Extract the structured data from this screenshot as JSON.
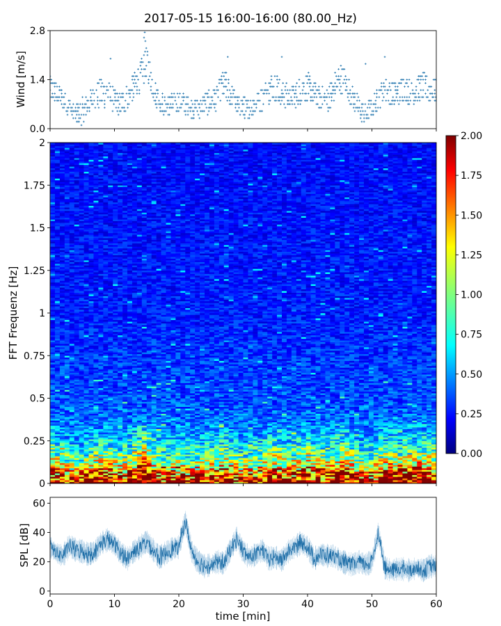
{
  "figure": {
    "title": "2017-05-15 16:00-16:00 (80.00_Hz)"
  },
  "chart_data": [
    {
      "type": "scatter",
      "panel": "wind",
      "ylabel": "Wind [m/s]",
      "xlim": [
        0,
        60
      ],
      "ylim": [
        0,
        2.8
      ],
      "yticks": [
        0.0,
        1.4,
        2.8
      ],
      "ytick_labels": [
        "0.0",
        "1.4",
        "2.8"
      ],
      "marker": "+",
      "color": "#2b7bb1",
      "envelope": {
        "x": [
          0,
          1,
          2,
          3,
          4,
          5,
          6,
          7,
          8,
          9,
          10,
          11,
          12,
          13,
          14,
          15,
          16,
          17,
          18,
          19,
          20,
          21,
          22,
          23,
          24,
          25,
          26,
          27,
          28,
          29,
          30,
          31,
          32,
          33,
          34,
          35,
          36,
          37,
          38,
          39,
          40,
          41,
          42,
          43,
          44,
          45,
          46,
          47,
          48,
          49,
          50,
          51,
          52,
          53,
          54,
          55,
          56,
          57,
          58,
          59,
          60
        ],
        "center": [
          1.2,
          1.0,
          0.8,
          0.6,
          0.4,
          0.5,
          0.7,
          0.9,
          1.0,
          1.0,
          0.8,
          0.7,
          0.9,
          1.2,
          1.5,
          1.9,
          1.2,
          0.8,
          0.6,
          0.7,
          0.8,
          0.7,
          0.6,
          0.6,
          0.7,
          0.8,
          0.9,
          1.3,
          1.0,
          0.7,
          0.6,
          0.6,
          0.7,
          0.8,
          1.1,
          1.3,
          1.0,
          0.9,
          0.9,
          1.1,
          1.2,
          1.0,
          0.9,
          0.8,
          1.1,
          1.5,
          1.3,
          0.9,
          0.6,
          0.4,
          0.6,
          0.9,
          1.1,
          1.0,
          1.0,
          1.2,
          1.0,
          1.1,
          1.2,
          1.1,
          1.1
        ],
        "spread": [
          0.35,
          0.35,
          0.3,
          0.3,
          0.3,
          0.35,
          0.35,
          0.4,
          0.4,
          0.4,
          0.35,
          0.3,
          0.35,
          0.4,
          0.45,
          0.45,
          0.4,
          0.3,
          0.3,
          0.3,
          0.3,
          0.3,
          0.3,
          0.3,
          0.3,
          0.35,
          0.35,
          0.45,
          0.4,
          0.3,
          0.3,
          0.3,
          0.3,
          0.35,
          0.45,
          0.5,
          0.4,
          0.35,
          0.35,
          0.4,
          0.4,
          0.35,
          0.35,
          0.35,
          0.4,
          0.45,
          0.4,
          0.35,
          0.3,
          0.3,
          0.3,
          0.35,
          0.4,
          0.35,
          0.35,
          0.4,
          0.35,
          0.35,
          0.4,
          0.35,
          0.35
        ]
      }
    },
    {
      "type": "heatmap",
      "panel": "spectrogram",
      "ylabel": "FFT Frequenz [Hz]",
      "xlim": [
        0,
        60
      ],
      "ylim": [
        0,
        2
      ],
      "yticks": [
        0,
        0.25,
        0.5,
        0.75,
        1,
        1.25,
        1.5,
        1.75,
        2
      ],
      "ytick_labels": [
        "0",
        "0.25",
        "0.5",
        "0.75",
        "1",
        "1.25",
        "1.5",
        "1.75",
        "2"
      ],
      "colormap": "jet",
      "colorbar": {
        "min": 0,
        "max": 2,
        "ticks": [
          "0.00",
          "0.25",
          "0.50",
          "0.75",
          "1.00",
          "1.25",
          "1.50",
          "1.75",
          "2.00"
        ]
      },
      "low_band_profile": {
        "freq": [
          0.0,
          0.05,
          0.1,
          0.15,
          0.2,
          0.25,
          0.3,
          0.4,
          0.5,
          0.75,
          1.0,
          1.5,
          2.0
        ],
        "mean_level": [
          1.9,
          1.6,
          1.2,
          0.95,
          0.8,
          0.65,
          0.55,
          0.45,
          0.4,
          0.35,
          0.3,
          0.28,
          0.26
        ]
      }
    },
    {
      "type": "line",
      "panel": "spl",
      "xlabel": "time [min]",
      "ylabel": "SPL [dB]",
      "xlim": [
        0,
        60
      ],
      "ylim": [
        -2,
        64
      ],
      "xticks": [
        0,
        10,
        20,
        30,
        40,
        50,
        60
      ],
      "xtick_labels": [
        "0",
        "10",
        "20",
        "30",
        "40",
        "50",
        "60"
      ],
      "yticks": [
        0,
        20,
        40,
        60
      ],
      "ytick_labels": [
        "0",
        "20",
        "40",
        "60"
      ],
      "color": "#2b7bb1",
      "x": [
        0,
        1,
        2,
        3,
        4,
        5,
        6,
        7,
        8,
        9,
        10,
        11,
        12,
        13,
        14,
        15,
        16,
        17,
        18,
        19,
        20,
        21,
        22,
        23,
        24,
        25,
        26,
        27,
        28,
        29,
        30,
        31,
        32,
        33,
        34,
        35,
        36,
        37,
        38,
        39,
        40,
        41,
        42,
        43,
        44,
        45,
        46,
        47,
        48,
        49,
        50,
        51,
        52,
        53,
        54,
        55,
        56,
        57,
        58,
        59,
        60
      ],
      "y": [
        30,
        26,
        24,
        31,
        28,
        27,
        25,
        27,
        33,
        35,
        32,
        26,
        22,
        27,
        30,
        34,
        28,
        23,
        26,
        29,
        30,
        48,
        27,
        20,
        17,
        18,
        20,
        19,
        28,
        36,
        27,
        23,
        25,
        28,
        22,
        23,
        21,
        27,
        30,
        33,
        30,
        22,
        25,
        24,
        24,
        21,
        19,
        18,
        20,
        18,
        20,
        40,
        16,
        14,
        15,
        15,
        14,
        16,
        14,
        17,
        17
      ],
      "noise_band": 6
    }
  ]
}
